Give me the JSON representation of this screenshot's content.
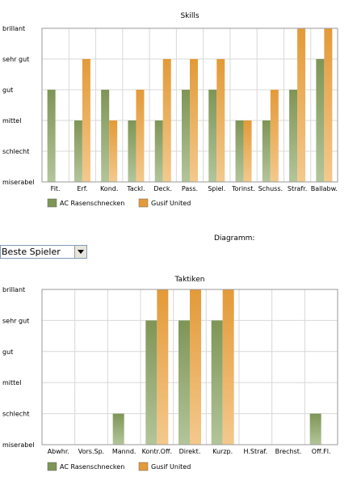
{
  "colors": {
    "team1_top": "#7e9556",
    "team1_bottom": "#b3c59a",
    "team2_top": "#e39a38",
    "team2_bottom": "#f3c98d",
    "grid": "#d8d8d8",
    "frame": "#9a9a9a"
  },
  "controls": {
    "diagram_label": "Diagramm:",
    "selected_option": "Beste Spieler",
    "dropdown_icon": "chevron-down-icon"
  },
  "chart_data": [
    {
      "type": "bar",
      "title": "Skills",
      "y_levels": [
        "miserabel",
        "schlecht",
        "mittel",
        "gut",
        "sehr gut",
        "brillant"
      ],
      "ylim": [
        0,
        5
      ],
      "categories": [
        "Fit.",
        "Erf.",
        "Kond.",
        "Tackl.",
        "Deck.",
        "Pass.",
        "Spiel.",
        "Torinst.",
        "Schuss.",
        "Strafr.",
        "Ballabw."
      ],
      "series": [
        {
          "name": "AC Rasenschnecken",
          "values": [
            3,
            2,
            3,
            2,
            2,
            3,
            3,
            2,
            2,
            3,
            4
          ]
        },
        {
          "name": "Gusif United",
          "values": [
            0,
            4,
            2,
            3,
            4,
            4,
            4,
            2,
            3,
            5,
            5
          ]
        }
      ],
      "legend_position": "bottom-left",
      "grid": true
    },
    {
      "type": "bar",
      "title": "Taktiken",
      "y_levels": [
        "miserabel",
        "schlecht",
        "mittel",
        "gut",
        "sehr gut",
        "brillant"
      ],
      "ylim": [
        0,
        5
      ],
      "categories": [
        "Abwhr.",
        "Vors.Sp.",
        "Mannd.",
        "Kontr.Off.",
        "Direkt.",
        "Kurzp.",
        "H.Straf.",
        "Brechst.",
        "Off.Fl."
      ],
      "series": [
        {
          "name": "AC Rasenschnecken",
          "values": [
            0,
            0,
            1,
            4,
            4,
            4,
            0,
            0,
            1
          ]
        },
        {
          "name": "Gusif United",
          "values": [
            0,
            0,
            0,
            5,
            5,
            5,
            0,
            0,
            0
          ]
        }
      ],
      "legend_position": "bottom-left",
      "grid": true
    }
  ]
}
